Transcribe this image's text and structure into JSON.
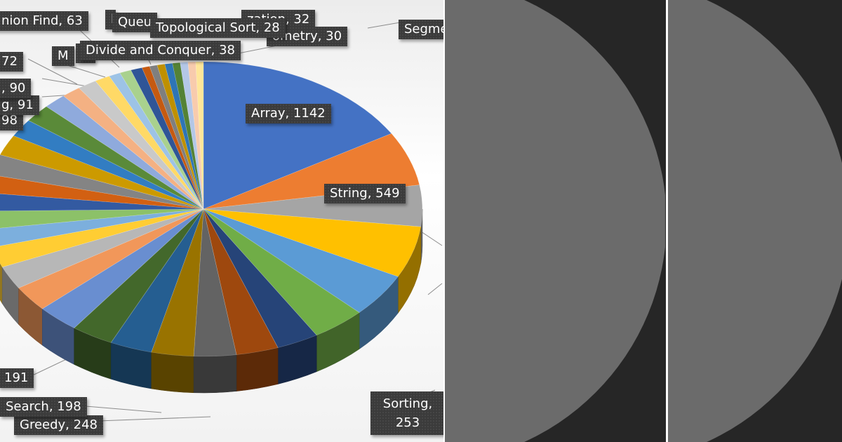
{
  "chart_data": {
    "type": "pie",
    "style": "3d",
    "data_labels_shown": true,
    "slices": [
      {
        "category": "Array",
        "value": 1142,
        "color": "#4472C4"
      },
      {
        "category": "String",
        "value": 549,
        "color": "#ED7D31"
      },
      {
        "category": "",
        "value": null,
        "color": "#A5A5A5"
      },
      {
        "category": "",
        "value": null,
        "color": "#FFC000"
      },
      {
        "category": "",
        "value": null,
        "color": "#5B9BD5"
      },
      {
        "category": "Sorting",
        "value": 253,
        "color": "#70AD47"
      },
      {
        "category": "",
        "value": null,
        "color": "#264478"
      },
      {
        "category": "Greedy",
        "value": 248,
        "color": "#9E480E"
      },
      {
        "category": "",
        "value": 198,
        "label_partial": "Search",
        "color": "#636363"
      },
      {
        "category": "",
        "value": 191,
        "color": "#997300"
      },
      {
        "category": "",
        "value": null,
        "color": "#255E91"
      },
      {
        "category": "",
        "value": null,
        "color": "#43682B"
      },
      {
        "category": "",
        "value": null,
        "color": "#698ED0"
      },
      {
        "category": "",
        "value": null,
        "color": "#F1975A"
      },
      {
        "category": "",
        "value": null,
        "color": "#B7B7B7"
      },
      {
        "category": "",
        "value": null,
        "color": "#FFCD33"
      },
      {
        "category": "",
        "value": null,
        "color": "#7CAFDD"
      },
      {
        "category": "",
        "value": null,
        "color": "#8CC168"
      },
      {
        "category": "",
        "value": null,
        "color": "#335AA1"
      },
      {
        "category": "",
        "value": null,
        "color": "#D26012"
      },
      {
        "category": "",
        "value": 98,
        "color": "#848484"
      },
      {
        "category": "",
        "value": 91,
        "color": "#CC9A00"
      },
      {
        "category": "",
        "value": 90,
        "color": "#327DC2"
      },
      {
        "category": "",
        "value": null,
        "color": "#5A8A39"
      },
      {
        "category": "",
        "value": 72,
        "color": "#8FAADC"
      },
      {
        "category": "",
        "value": null,
        "color": "#F4B183"
      },
      {
        "category": "",
        "value": 63,
        "label_partial": "nion Find",
        "color": "#C9C9C9"
      },
      {
        "category": "",
        "value": null,
        "color": "#FFD966"
      },
      {
        "category": "",
        "value": null,
        "color": "#9DC3E6"
      },
      {
        "category": "",
        "value": null,
        "color": "#A9D18E"
      },
      {
        "category": "Divide and Conquer",
        "value": 38,
        "color": "#2F5597"
      },
      {
        "category": "",
        "value": 32,
        "label_partial": "zation",
        "color": "#C55A11"
      },
      {
        "category": "",
        "value": 30,
        "label_partial": "ometry",
        "color": "#7F7F7F"
      },
      {
        "category": "Topological Sort",
        "value": 28,
        "color": "#BF9000"
      },
      {
        "category": "",
        "value": null,
        "label_partial": "Queu",
        "color": "#2E75B6"
      },
      {
        "category": "",
        "value": null,
        "label_partial": "Segme",
        "color": "#548235"
      },
      {
        "category": "",
        "value": null,
        "color": "#B4C7E7"
      },
      {
        "category": "",
        "value": null,
        "color": "#F8CBAD"
      },
      {
        "category": "",
        "value": null,
        "color": "#FFE699"
      }
    ],
    "labels": {
      "array": "Array, 1142",
      "string": "String, 549",
      "sorting_1": "Sorting,",
      "sorting_2": "253",
      "greedy": "Greedy, 248",
      "search": "Search, 198",
      "v191": "191",
      "v98": "98",
      "v91": "g, 91",
      "v90": ", 90",
      "v72": "72",
      "union_find": "nion Find, 63",
      "divide": "Divide and Conquer, 38",
      "topo": "Topological Sort, 28",
      "geometry": "ometry, 30",
      "zation": "zation, 32",
      "queue": "Queu",
      "segme": "Segme",
      "m": "M",
      "b": "B",
      "l": "l"
    }
  }
}
